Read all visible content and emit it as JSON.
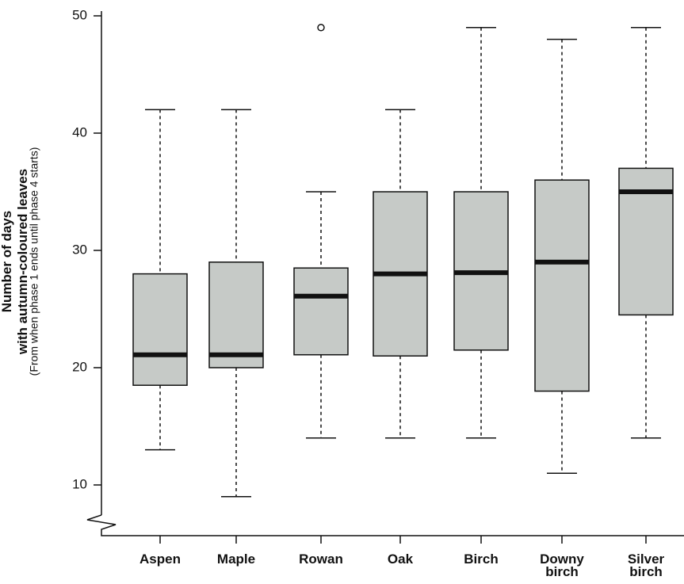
{
  "chart_data": {
    "type": "box",
    "y_label": "Number of days with autumn-coloured leaves",
    "y_sublabel": "(From when phase 1 ends until phase 4 starts)",
    "categories": [
      "Aspen",
      "Maple",
      "Rowan",
      "Oak",
      "Birch",
      "Downy birch",
      "Silver birch"
    ],
    "boxes": [
      {
        "whislo": 13,
        "q1": 18.5,
        "med": 21.1,
        "q3": 28,
        "whishi": 42,
        "fliers": []
      },
      {
        "whislo": 9,
        "q1": 20,
        "med": 21.1,
        "q3": 29,
        "whishi": 42,
        "fliers": []
      },
      {
        "whislo": 14,
        "q1": 21.1,
        "med": 26.1,
        "q3": 28.5,
        "whishi": 35,
        "fliers": [
          49
        ]
      },
      {
        "whislo": 14,
        "q1": 21,
        "med": 28,
        "q3": 35,
        "whishi": 42,
        "fliers": []
      },
      {
        "whislo": 14,
        "q1": 21.5,
        "med": 28.1,
        "q3": 35,
        "whishi": 49,
        "fliers": []
      },
      {
        "whislo": 11,
        "q1": 18,
        "med": 29,
        "q3": 36,
        "whishi": 48,
        "fliers": []
      },
      {
        "whislo": 14,
        "q1": 24.5,
        "med": 35,
        "q3": 37,
        "whishi": 49,
        "fliers": []
      }
    ],
    "color": "#c6cac7",
    "ylim": [
      7,
      50
    ],
    "yticks": [
      10,
      20,
      30,
      40,
      50
    ],
    "grid": false
  }
}
